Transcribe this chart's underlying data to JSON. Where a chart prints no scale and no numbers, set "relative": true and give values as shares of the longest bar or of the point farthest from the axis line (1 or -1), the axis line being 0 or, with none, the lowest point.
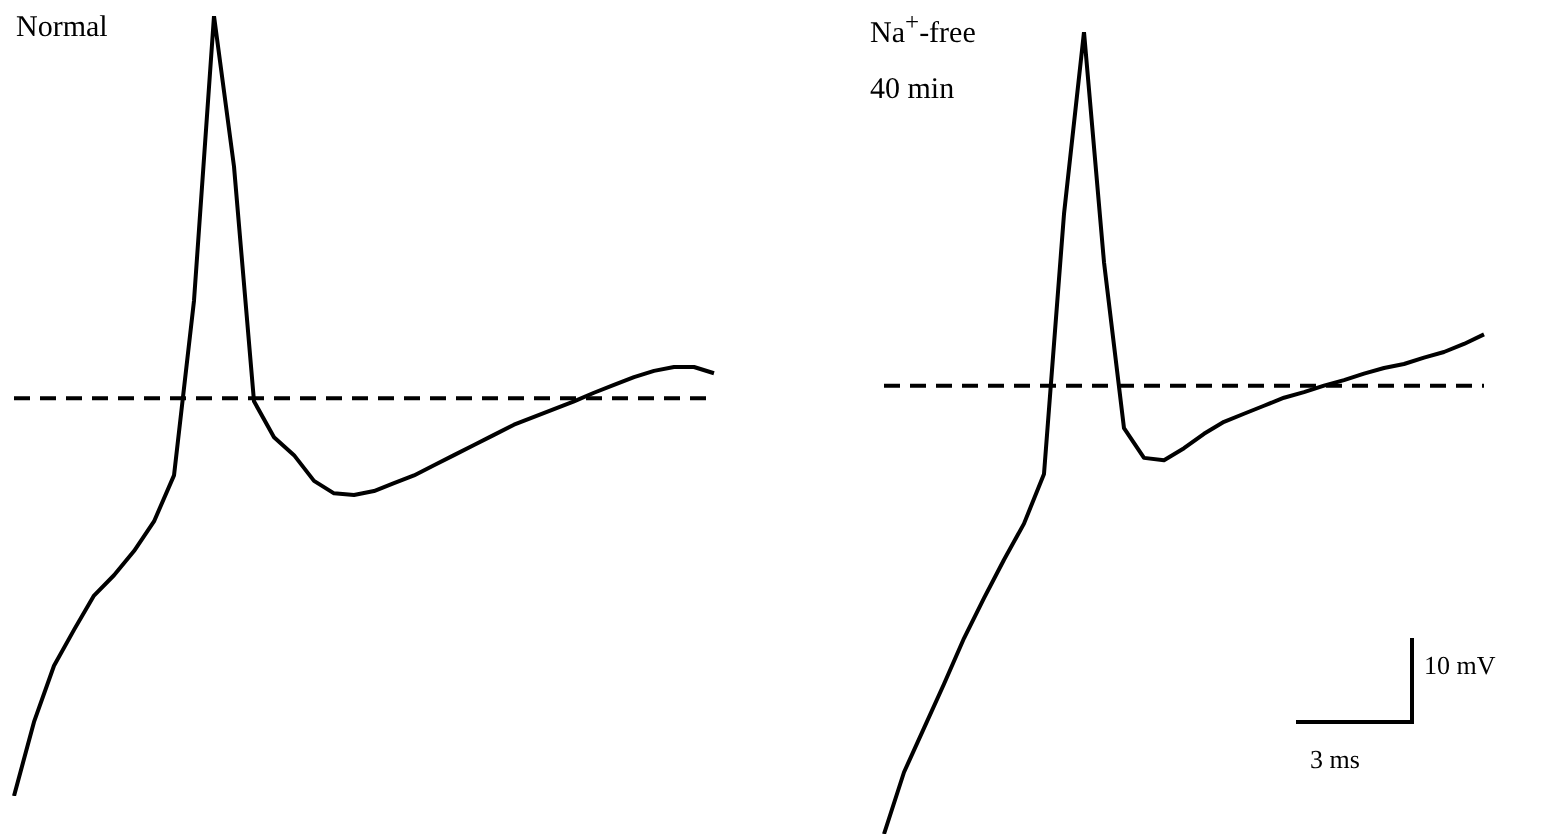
{
  "chart_data": [
    {
      "type": "line",
      "title": "Normal",
      "relative": true,
      "categories": [
        null,
        null,
        null,
        null,
        null,
        null,
        null,
        null,
        null,
        null,
        null,
        null,
        null,
        null,
        null,
        null,
        null,
        null,
        null,
        null,
        null,
        null,
        null,
        null,
        null,
        null,
        null,
        null,
        null,
        null,
        null,
        null,
        null,
        null,
        null,
        null
      ],
      "series": [
        {
          "color": "#000000",
          "values": [
            0,
            0.095,
            0.167,
            0.213,
            0.257,
            0.283,
            0.314,
            0.352,
            0.411,
            0.635,
            1,
            0.807,
            0.506,
            0.46,
            0.437,
            0.404,
            0.388,
            0.386,
            0.391,
            0.401,
            0.411,
            0.424,
            0.437,
            0.45,
            0.463,
            0.476,
            0.486,
            0.496,
            0.506,
            0.517,
            0.527,
            0.537,
            0.545,
            0.55,
            0.55,
            0.542
          ]
        }
      ],
      "ref_lines": [
        {
          "axis": "y",
          "value": 0.51,
          "color": "#000000",
          "line_style": "dashed"
        }
      ],
      "marker": "none",
      "line_style": "solid",
      "legend": false
    },
    {
      "type": "line",
      "title": "Na$^{+}$-free",
      "subtitle": "40 min",
      "relative": true,
      "categories": [
        null,
        null,
        null,
        null,
        null,
        null,
        null,
        null,
        null,
        null,
        null,
        null,
        null,
        null,
        null,
        null,
        null,
        null,
        null,
        null,
        null,
        null,
        null,
        null,
        null,
        null,
        null,
        null,
        null,
        null,
        null
      ],
      "series": [
        {
          "color": "#000000",
          "values": [
            0,
            0.077,
            0.132,
            0.187,
            0.244,
            0.294,
            0.342,
            0.387,
            0.449,
            0.773,
            1,
            0.713,
            0.506,
            0.469,
            0.466,
            0.481,
            0.499,
            0.514,
            0.524,
            0.534,
            0.544,
            0.551,
            0.559,
            0.566,
            0.574,
            0.581,
            0.586,
            0.594,
            0.601,
            0.611,
            0.623
          ]
        }
      ],
      "ref_lines": [
        {
          "axis": "y",
          "value": 0.559,
          "color": "#000000",
          "line_style": "dashed"
        }
      ],
      "annotations": [
        "10 mV",
        "3 ms"
      ],
      "marker": "none",
      "line_style": "solid",
      "legend": false
    }
  ]
}
